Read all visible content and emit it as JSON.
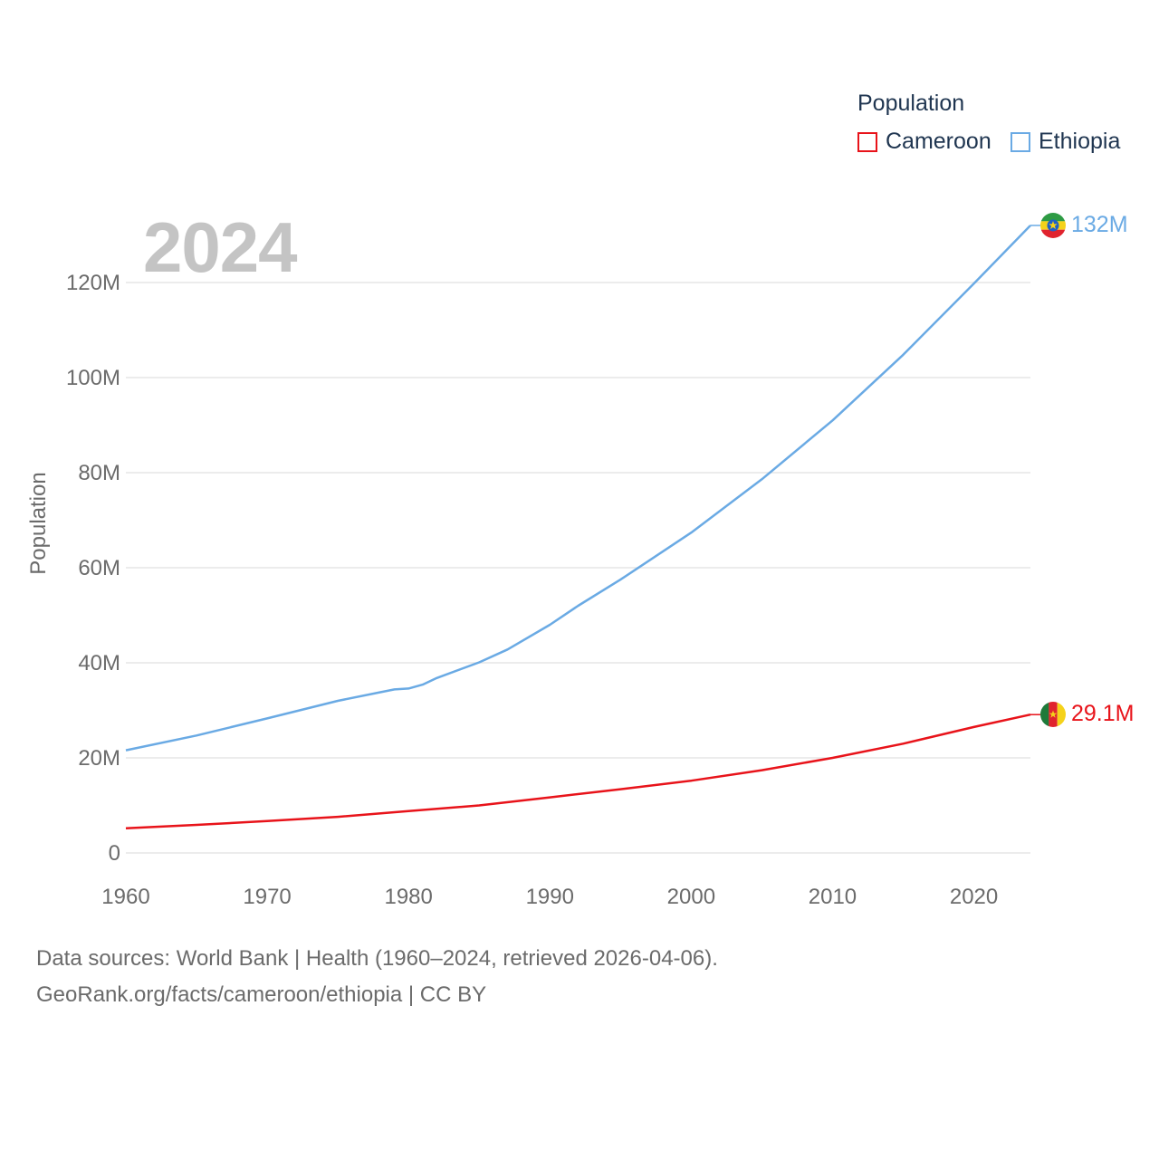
{
  "legend": {
    "title": "Population",
    "items": [
      {
        "label": "Cameroon",
        "color": "#e8131a"
      },
      {
        "label": "Ethiopia",
        "color": "#6aaae4"
      }
    ]
  },
  "year_label": "2024",
  "footer": {
    "line1": "Data sources: World Bank | Health (1960–2024, retrieved 2026-04-06).",
    "line2": "GeoRank.org/facts/cameroon/ethiopia | CC BY"
  },
  "chart_data": {
    "type": "line",
    "title": "",
    "xlabel": "",
    "ylabel": "Population",
    "xlim": [
      1960,
      2024
    ],
    "ylim": [
      0,
      125000000
    ],
    "x_ticks": [
      1960,
      1970,
      1980,
      1990,
      2000,
      2010,
      2020
    ],
    "x_tick_labels": [
      "1960",
      "1970",
      "1980",
      "1990",
      "2000",
      "2010",
      "2020"
    ],
    "y_ticks": [
      0,
      20000000,
      40000000,
      60000000,
      80000000,
      100000000,
      120000000
    ],
    "y_tick_labels": [
      "0",
      "20M",
      "40M",
      "60M",
      "80M",
      "100M",
      "120M"
    ],
    "grid": true,
    "legend_position": "top-right",
    "series": [
      {
        "name": "Cameroon",
        "color": "#e8131a",
        "end_label": "29.1M",
        "flag": "cameroon-flag",
        "x": [
          1960,
          1965,
          1970,
          1975,
          1980,
          1985,
          1990,
          1995,
          2000,
          2005,
          2010,
          2015,
          2020,
          2024
        ],
        "y": [
          5200000,
          5900000,
          6700000,
          7600000,
          8800000,
          10000000,
          11700000,
          13400000,
          15200000,
          17400000,
          20000000,
          23000000,
          26500000,
          29100000
        ]
      },
      {
        "name": "Ethiopia",
        "color": "#6aaae4",
        "end_label": "132M",
        "flag": "ethiopia-flag",
        "x": [
          1960,
          1965,
          1970,
          1975,
          1978,
          1979,
          1980,
          1981,
          1982,
          1985,
          1987,
          1990,
          1992,
          1995,
          2000,
          2005,
          2010,
          2015,
          2020,
          2024
        ],
        "y": [
          21600000,
          24700000,
          28300000,
          32000000,
          33800000,
          34400000,
          34600000,
          35400000,
          36800000,
          40100000,
          42800000,
          48000000,
          52000000,
          57500000,
          67400000,
          78600000,
          91000000,
          104800000,
          119800000,
          132000000
        ]
      }
    ]
  }
}
